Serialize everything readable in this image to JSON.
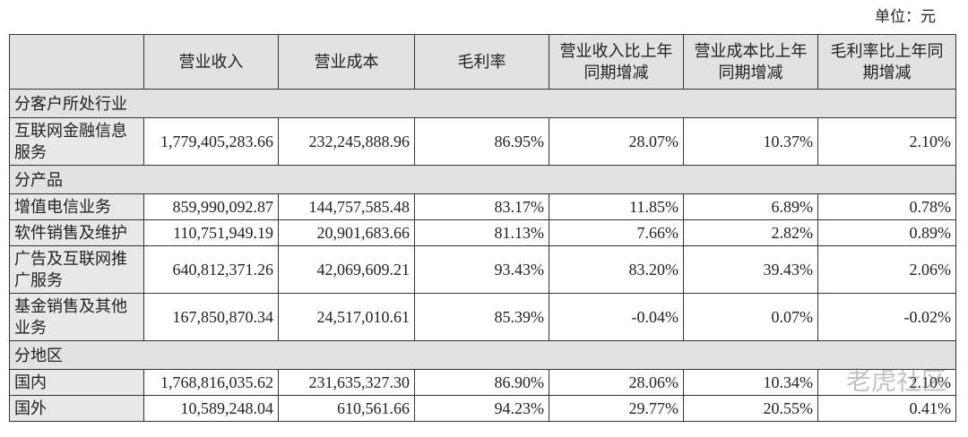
{
  "unit": "单位：元",
  "watermark": "老虎社区",
  "table": {
    "header": [
      "营业收入",
      "营业成本",
      "毛利率",
      "营业收入比上年同期增减",
      "营业成本比上年同期增减",
      "毛利率比上年同期增减"
    ],
    "sections": [
      {
        "title": "分客户所处行业",
        "rows": [
          [
            "互联网金融信息服务",
            "1,779,405,283.66",
            "232,245,888.96",
            "86.95%",
            "28.07%",
            "10.37%",
            "2.10%"
          ]
        ]
      },
      {
        "title": "分产品",
        "rows": [
          [
            "增值电信业务",
            "859,990,092.87",
            "144,757,585.48",
            "83.17%",
            "11.85%",
            "6.89%",
            "0.78%"
          ],
          [
            "软件销售及维护",
            "110,751,949.19",
            "20,901,683.66",
            "81.13%",
            "7.66%",
            "2.82%",
            "0.89%"
          ],
          [
            "广告及互联网推广服务",
            "640,812,371.26",
            "42,069,609.21",
            "93.43%",
            "83.20%",
            "39.43%",
            "2.06%"
          ],
          [
            "基金销售及其他业务",
            "167,850,870.34",
            "24,517,010.61",
            "85.39%",
            "-0.04%",
            "0.07%",
            "-0.02%"
          ]
        ]
      },
      {
        "title": "分地区",
        "rows": [
          [
            "国内",
            "1,768,816,035.62",
            "231,635,327.30",
            "86.90%",
            "28.06%",
            "10.34%",
            "2.10%"
          ],
          [
            "国外",
            "10,589,248.04",
            "610,561.66",
            "94.23%",
            "29.77%",
            "20.55%",
            "0.41%"
          ]
        ]
      }
    ]
  }
}
